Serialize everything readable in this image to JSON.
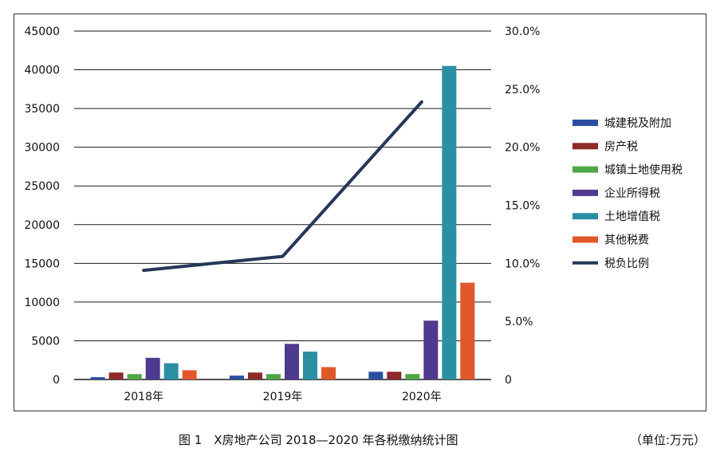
{
  "caption": {
    "title": "图 1　X房地产公司 2018—2020 年各税缴纳统计图",
    "unit": "（单位:万元）"
  },
  "chart_data": {
    "type": "bar",
    "categories": [
      "2018年",
      "2019年",
      "2020年"
    ],
    "series": [
      {
        "name": "城建税及附加",
        "color": "#2b4ea0",
        "values": [
          300,
          500,
          1000
        ]
      },
      {
        "name": "房产税",
        "color": "#8e2a2a",
        "values": [
          900,
          900,
          1000
        ]
      },
      {
        "name": "城镇土地使用税",
        "color": "#4ea647",
        "values": [
          700,
          700,
          700
        ]
      },
      {
        "name": "企业所得税",
        "color": "#4e3a8e",
        "values": [
          2800,
          4600,
          7600
        ]
      },
      {
        "name": "土地增值税",
        "color": "#2b8fa3",
        "values": [
          2100,
          3600,
          40500
        ]
      },
      {
        "name": "其他税费",
        "color": "#e0582a",
        "values": [
          1200,
          1600,
          12500
        ]
      }
    ],
    "line_series": {
      "name": "税负比例",
      "color": "#253858",
      "values": [
        9.4,
        10.6,
        23.9
      ],
      "axis": "right"
    },
    "y_left": {
      "min": 0,
      "max": 45000,
      "ticks": [
        "0",
        "5000",
        "10000",
        "15000",
        "20000",
        "25000",
        "30000",
        "35000",
        "40000",
        "45000"
      ]
    },
    "y_right": {
      "min": 0,
      "max": 30,
      "ticks": [
        "0",
        "5.0%",
        "10.0%",
        "15.0%",
        "20.0%",
        "25.0%",
        "30.0%"
      ]
    },
    "grid": true,
    "legend_position": "right"
  }
}
